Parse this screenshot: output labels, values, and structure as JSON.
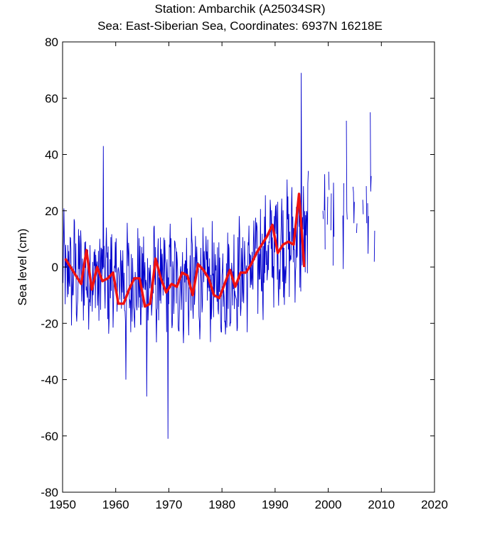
{
  "chart_data": {
    "type": "line",
    "title": "Station: Ambarchik (A25034SR)",
    "subtitle": "Sea: East-Siberian Sea, Coordinates: 6937N 16218E",
    "xlabel": "",
    "ylabel": "Sea level (cm)",
    "xlim": [
      1950,
      2020
    ],
    "ylim": [
      -80,
      80
    ],
    "xticks": [
      1950,
      1960,
      1970,
      1980,
      1990,
      2000,
      2010,
      2020
    ],
    "yticks": [
      80,
      60,
      40,
      20,
      0,
      -20,
      -40,
      -60,
      -80
    ],
    "grid": false,
    "series": [
      {
        "color": "#0000cc",
        "style": "thin-line",
        "gaps": [
          [
            1996.3,
            1998.0
          ],
          [
            2001.2,
            2002.2
          ],
          [
            2009.0,
            2010.0
          ]
        ],
        "x_start": 1950.0,
        "x_end": 2011.0,
        "points_per_year": 12,
        "trend_anchors": [
          [
            1950,
            -2
          ],
          [
            1955,
            -3
          ],
          [
            1960,
            -5
          ],
          [
            1965,
            -6
          ],
          [
            1970,
            -6
          ],
          [
            1975,
            -5
          ],
          [
            1980,
            -6
          ],
          [
            1985,
            -1
          ],
          [
            1990,
            8
          ],
          [
            1995,
            10
          ],
          [
            2000,
            15
          ],
          [
            2005,
            20
          ],
          [
            2011,
            22
          ]
        ],
        "amplitude": 17,
        "extremes": [
          [
            1969.8,
            -61
          ],
          [
            1994.9,
            69
          ],
          [
            1965.8,
            -46
          ],
          [
            1961.9,
            -40
          ],
          [
            1957.7,
            43
          ],
          [
            2007.9,
            55
          ],
          [
            2003.4,
            52
          ]
        ]
      },
      {
        "color": "#ee1111",
        "style": "thick-line",
        "x": [
          1950.5,
          1951.5,
          1952.5,
          1953.5,
          1954.5,
          1955.5,
          1956.5,
          1957.5,
          1958.5,
          1959.5,
          1960.5,
          1961.5,
          1962.5,
          1963.5,
          1964.5,
          1965.5,
          1966.5,
          1967.5,
          1968.5,
          1969.5,
          1970.5,
          1971.5,
          1972.5,
          1973.5,
          1974.5,
          1975.5,
          1976.5,
          1977.5,
          1978.5,
          1979.5,
          1980.5,
          1981.5,
          1982.5,
          1983.5,
          1984.5,
          1985.5,
          1986.5,
          1987.5,
          1988.5,
          1989.5,
          1990.5,
          1991.5,
          1992.5,
          1993.5,
          1994.5,
          1995.5
        ],
        "y": [
          3,
          0,
          -3,
          -6,
          6,
          -8,
          0,
          -5,
          -4,
          -2,
          -13,
          -13,
          -8,
          -4,
          -4,
          -14,
          -13,
          3,
          -4,
          -9,
          -6,
          -7,
          -2,
          -3,
          -10,
          1,
          -1,
          -4,
          -10,
          -11,
          -6,
          -1,
          -7,
          -2,
          -2,
          1,
          5,
          8,
          11,
          15,
          5,
          8,
          9,
          8,
          26,
          0
        ]
      }
    ]
  }
}
